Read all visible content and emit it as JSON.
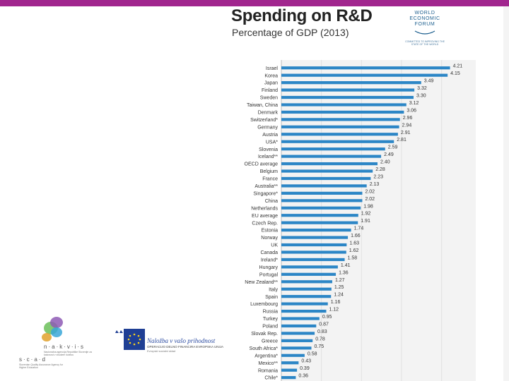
{
  "colors": {
    "top_bar": "#a1268e",
    "bar": "#2c86c6",
    "wef_blue": "#1b5e8e",
    "eu_blue": "#1f3f94"
  },
  "logos": {
    "wef": {
      "line1": "WORLD",
      "line2": "ECONOMIC",
      "line3": "FORUM",
      "tagline": "COMMITTED TO IMPROVING THE STATE OF THE WORLD"
    },
    "nakvis": {
      "name": "n·a·k·v·i·s",
      "subtitle": "Nacionalna agencija Republike Slovenije za kakovost v visokem šolstvu"
    },
    "scad": {
      "name": "s·c·a·d",
      "subtitle": "Slovenian Quality Assurance Agency for Higher Education"
    },
    "eu": {
      "title": "Naložba v vašo prihodnost",
      "subtitle1": "OPERACIJO DELNO FINANCIRA EVROPSKA UNIJA",
      "subtitle2": "Evropski socialni sklad"
    }
  },
  "chart_data": {
    "type": "bar",
    "orientation": "horizontal",
    "title": "Spending on R&D",
    "subtitle": "Percentage of GDP (2013)",
    "xlim": [
      0,
      4.5
    ],
    "grid": true,
    "categories": [
      "Israel",
      "Korea",
      "Japan",
      "Finland",
      "Sweden",
      "Taiwan, China",
      "Denmark",
      "Switzerland*",
      "Germany",
      "Austria",
      "USA*",
      "Slovenia",
      "Iceland**",
      "OECD average",
      "Belgium",
      "France",
      "Australia**",
      "Singapore*",
      "China",
      "Netherlands",
      "EU average",
      "Czech Rep.",
      "Estonia",
      "Norway",
      "UK",
      "Canada",
      "Ireland*",
      "Hungary",
      "Portugal",
      "New Zealand**",
      "Italy",
      "Spain",
      "Luxembourg",
      "Russia",
      "Turkey",
      "Poland",
      "Slovak Rep.",
      "Greece",
      "South Africa*",
      "Argentina*",
      "Mexico**",
      "Romania",
      "Chile*"
    ],
    "values": [
      4.21,
      4.15,
      3.49,
      3.32,
      3.3,
      3.12,
      3.06,
      2.96,
      2.94,
      2.91,
      2.81,
      2.59,
      2.49,
      2.4,
      2.28,
      2.23,
      2.13,
      2.02,
      2.02,
      1.98,
      1.92,
      1.91,
      1.74,
      1.66,
      1.63,
      1.62,
      1.58,
      1.41,
      1.36,
      1.27,
      1.25,
      1.24,
      1.16,
      1.12,
      0.95,
      0.87,
      0.83,
      0.78,
      0.75,
      0.58,
      0.43,
      0.39,
      0.36
    ],
    "labels": [
      "4.21",
      "4.15",
      "3.49",
      "3.32",
      "3.30",
      "3.12",
      "3.06",
      "2.96",
      "2.94",
      "2.91",
      "2.81",
      "2.59",
      "2.49",
      "2.40",
      "2.28",
      "2.23",
      "2.13",
      "2.02",
      "2.02",
      "1.98",
      "1.92",
      "1.91",
      "1.74",
      "1.66",
      "1.63",
      "1.62",
      "1.58",
      "1.41",
      "1.36",
      "1.27",
      "1.25",
      "1.24",
      "1.16",
      "1.12",
      "0.95",
      "0.87",
      "0.83",
      "0.78",
      "0.75",
      "0.58",
      "0.43",
      "0.39",
      "0.36"
    ]
  }
}
